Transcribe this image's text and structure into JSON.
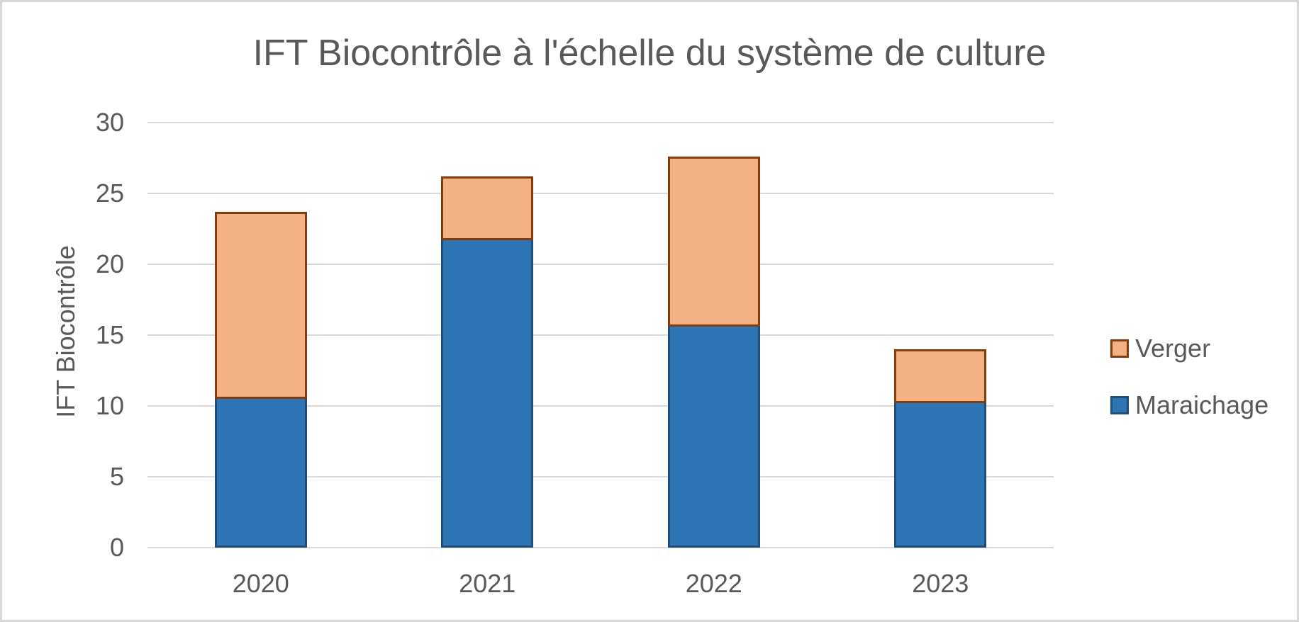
{
  "chart_data": {
    "type": "bar",
    "stacked": true,
    "title": "IFT Biocontrôle à l'échelle du système de culture",
    "xlabel": "",
    "ylabel": "IFT Biocontrôle",
    "categories": [
      "2020",
      "2021",
      "2022",
      "2023"
    ],
    "series": [
      {
        "name": "Maraichage",
        "values": [
          10.5,
          21.7,
          15.6,
          10.2
        ],
        "fill": "#2E75B6",
        "border": "#1F4E79"
      },
      {
        "name": "Verger",
        "values": [
          13.2,
          4.5,
          12.0,
          3.8
        ],
        "fill": "#F4B183",
        "border": "#843C0C"
      }
    ],
    "totals": [
      23.7,
      26.2,
      27.6,
      14.0
    ],
    "ylim": [
      0,
      30
    ],
    "yticks": [
      0,
      5,
      10,
      15,
      20,
      25,
      30
    ],
    "grid": true,
    "legend_position": "right",
    "legend_order": [
      "Verger",
      "Maraichage"
    ],
    "colors": {
      "text": "#595959",
      "gridline": "#D9D9D9",
      "background": "#FFFFFF",
      "frame": "#D6D6D6"
    }
  }
}
